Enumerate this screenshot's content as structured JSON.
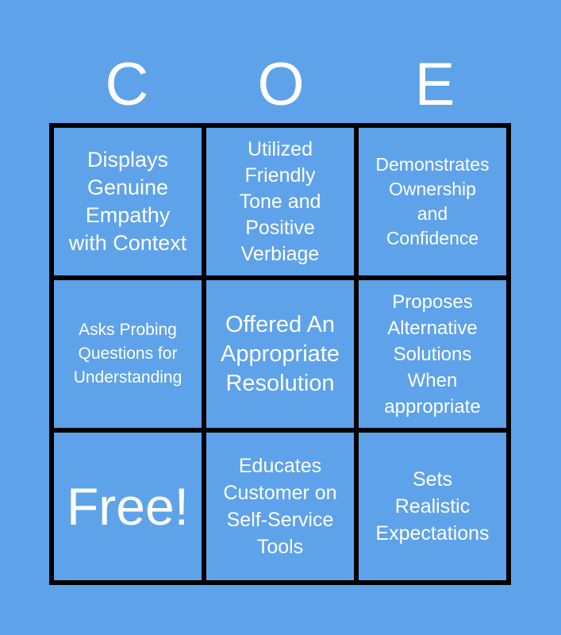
{
  "header": {
    "letters": [
      "C",
      "O",
      "E"
    ]
  },
  "cells": [
    "Displays\nGenuine\nEmpathy\nwith Context",
    "Utilized\nFriendly\nTone and\nPositive\nVerbiage",
    "Demonstrates\nOwnership\nand\nConfidence",
    "Asks Probing\nQuestions for\nUnderstanding",
    "Offered An\nAppropriate\nResolution",
    "Proposes\nAlternative\nSolutions\nWhen\nappropriate",
    "Free!",
    "Educates\nCustomer on\nSelf-Service\nTools",
    "Sets\nRealistic\nExpectations"
  ],
  "colors": {
    "background": "#5ea2ea",
    "grid": "#000000",
    "text": "#ffffff"
  }
}
